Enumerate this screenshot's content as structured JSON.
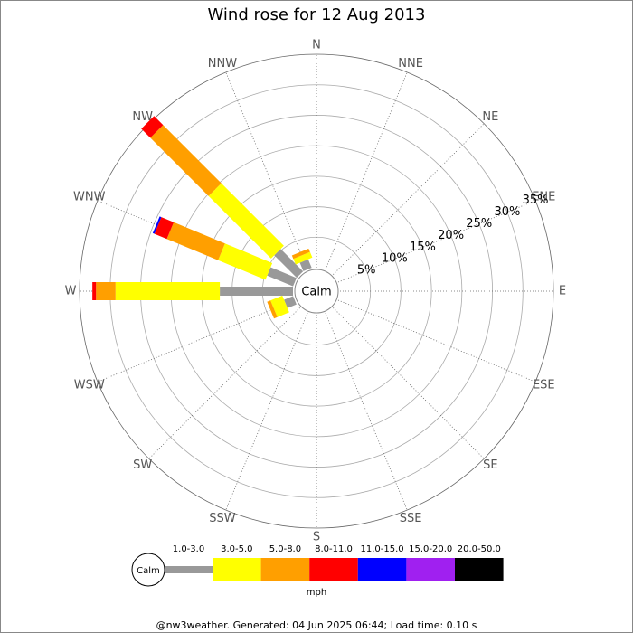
{
  "chart_data": {
    "type": "windrose",
    "title": "Wind rose for 12 Aug 2013",
    "categories": [
      "N",
      "NNE",
      "NE",
      "ENE",
      "E",
      "ESE",
      "SE",
      "SSE",
      "S",
      "SSW",
      "SW",
      "WSW",
      "W",
      "WNW",
      "NW",
      "NNW"
    ],
    "calm_label": "Calm",
    "unit": "mph",
    "footer": "@nw3weather. Generated: 04 Jun 2025 06:44; Load time: 0.10 s",
    "rlim": [
      0,
      35
    ],
    "rticks": [
      {
        "value": 5,
        "label": "5%"
      },
      {
        "value": 10,
        "label": "10%"
      },
      {
        "value": 15,
        "label": "15%"
      },
      {
        "value": 20,
        "label": "20%"
      },
      {
        "value": 25,
        "label": "25%"
      },
      {
        "value": 30,
        "label": "30%"
      },
      {
        "value": 35,
        "label": "35%"
      }
    ],
    "grid": true,
    "series": [
      {
        "name": "1.0-3.0",
        "color": "#999999",
        "values": [
          0,
          0,
          0,
          0,
          0,
          0,
          0,
          0,
          0,
          0,
          0,
          1.6,
          12.0,
          4.6,
          5.2,
          1.5
        ]
      },
      {
        "name": "3.0-5.0",
        "color": "#ffff00",
        "values": [
          0,
          0,
          0,
          0,
          0,
          0,
          0,
          0,
          0,
          0,
          0,
          2.1,
          17.1,
          8.4,
          14.5,
          1.0
        ]
      },
      {
        "name": "5.0-8.0",
        "color": "#ff9f00",
        "values": [
          0,
          0,
          0,
          0,
          0,
          0,
          0,
          0,
          0,
          0,
          0,
          0.6,
          3.2,
          9.1,
          13.5,
          0.6
        ]
      },
      {
        "name": "8.0-11.0",
        "color": "#ff0000",
        "values": [
          0,
          0,
          0,
          0,
          0,
          0,
          0,
          0,
          0,
          0,
          0,
          0,
          0.6,
          2.2,
          2.1,
          0
        ]
      },
      {
        "name": "11.0-15.0",
        "color": "#0000ff",
        "values": [
          0,
          0,
          0,
          0,
          0,
          0,
          0,
          0,
          0,
          0,
          0,
          0,
          0,
          0.3,
          0,
          0
        ]
      },
      {
        "name": "15.0-20.0",
        "color": "#a020f0",
        "values": [
          0,
          0,
          0,
          0,
          0,
          0,
          0,
          0,
          0,
          0,
          0,
          0,
          0,
          0,
          0,
          0
        ]
      },
      {
        "name": "20.0-50.0",
        "color": "#000000",
        "values": [
          0,
          0,
          0,
          0,
          0,
          0,
          0,
          0,
          0,
          0,
          0,
          0,
          0,
          0,
          0,
          0
        ]
      }
    ]
  }
}
